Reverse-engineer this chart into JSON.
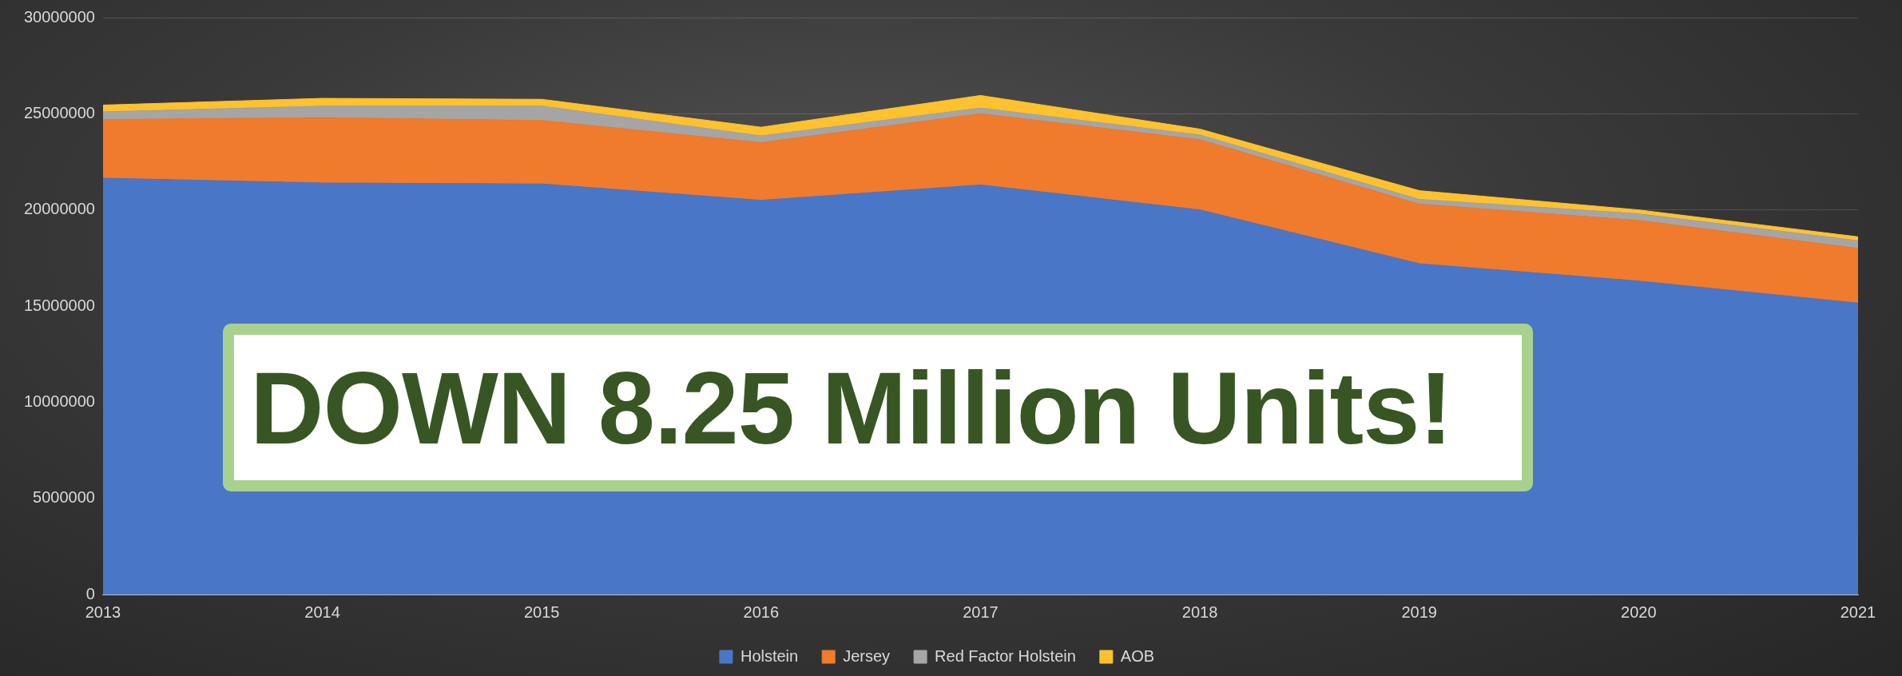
{
  "chart_data": {
    "type": "area",
    "stacked": true,
    "x": [
      2013,
      2014,
      2015,
      2016,
      2017,
      2018,
      2019,
      2020,
      2021
    ],
    "xlim": [
      2013,
      2021
    ],
    "xticks": [
      2013,
      2014,
      2015,
      2016,
      2017,
      2018,
      2019,
      2020,
      2021
    ],
    "ylim": [
      0,
      30000000
    ],
    "yticks": [
      0,
      5000000,
      10000000,
      15000000,
      20000000,
      25000000,
      30000000
    ],
    "grid": "y",
    "legend": "bottom",
    "series": [
      {
        "name": "Holstein",
        "color": "#4a76c8",
        "values": [
          21650000,
          21400000,
          21350000,
          20500000,
          21300000,
          20000000,
          17200000,
          16300000,
          15150000
        ]
      },
      {
        "name": "Jersey",
        "color": "#f07b2c",
        "values": [
          3050000,
          3400000,
          3300000,
          3000000,
          3700000,
          3650000,
          3100000,
          3150000,
          2850000
        ]
      },
      {
        "name": "Red Factor Holstein",
        "color": "#a5a5a5",
        "values": [
          400000,
          600000,
          750000,
          350000,
          300000,
          250000,
          250000,
          350000,
          400000
        ]
      },
      {
        "name": "AOB",
        "color": "#ffc22e",
        "values": [
          350000,
          400000,
          350000,
          450000,
          650000,
          300000,
          450000,
          200000,
          200000
        ]
      }
    ],
    "annotations": [
      "DOWN 8.25 Million Units!"
    ]
  }
}
